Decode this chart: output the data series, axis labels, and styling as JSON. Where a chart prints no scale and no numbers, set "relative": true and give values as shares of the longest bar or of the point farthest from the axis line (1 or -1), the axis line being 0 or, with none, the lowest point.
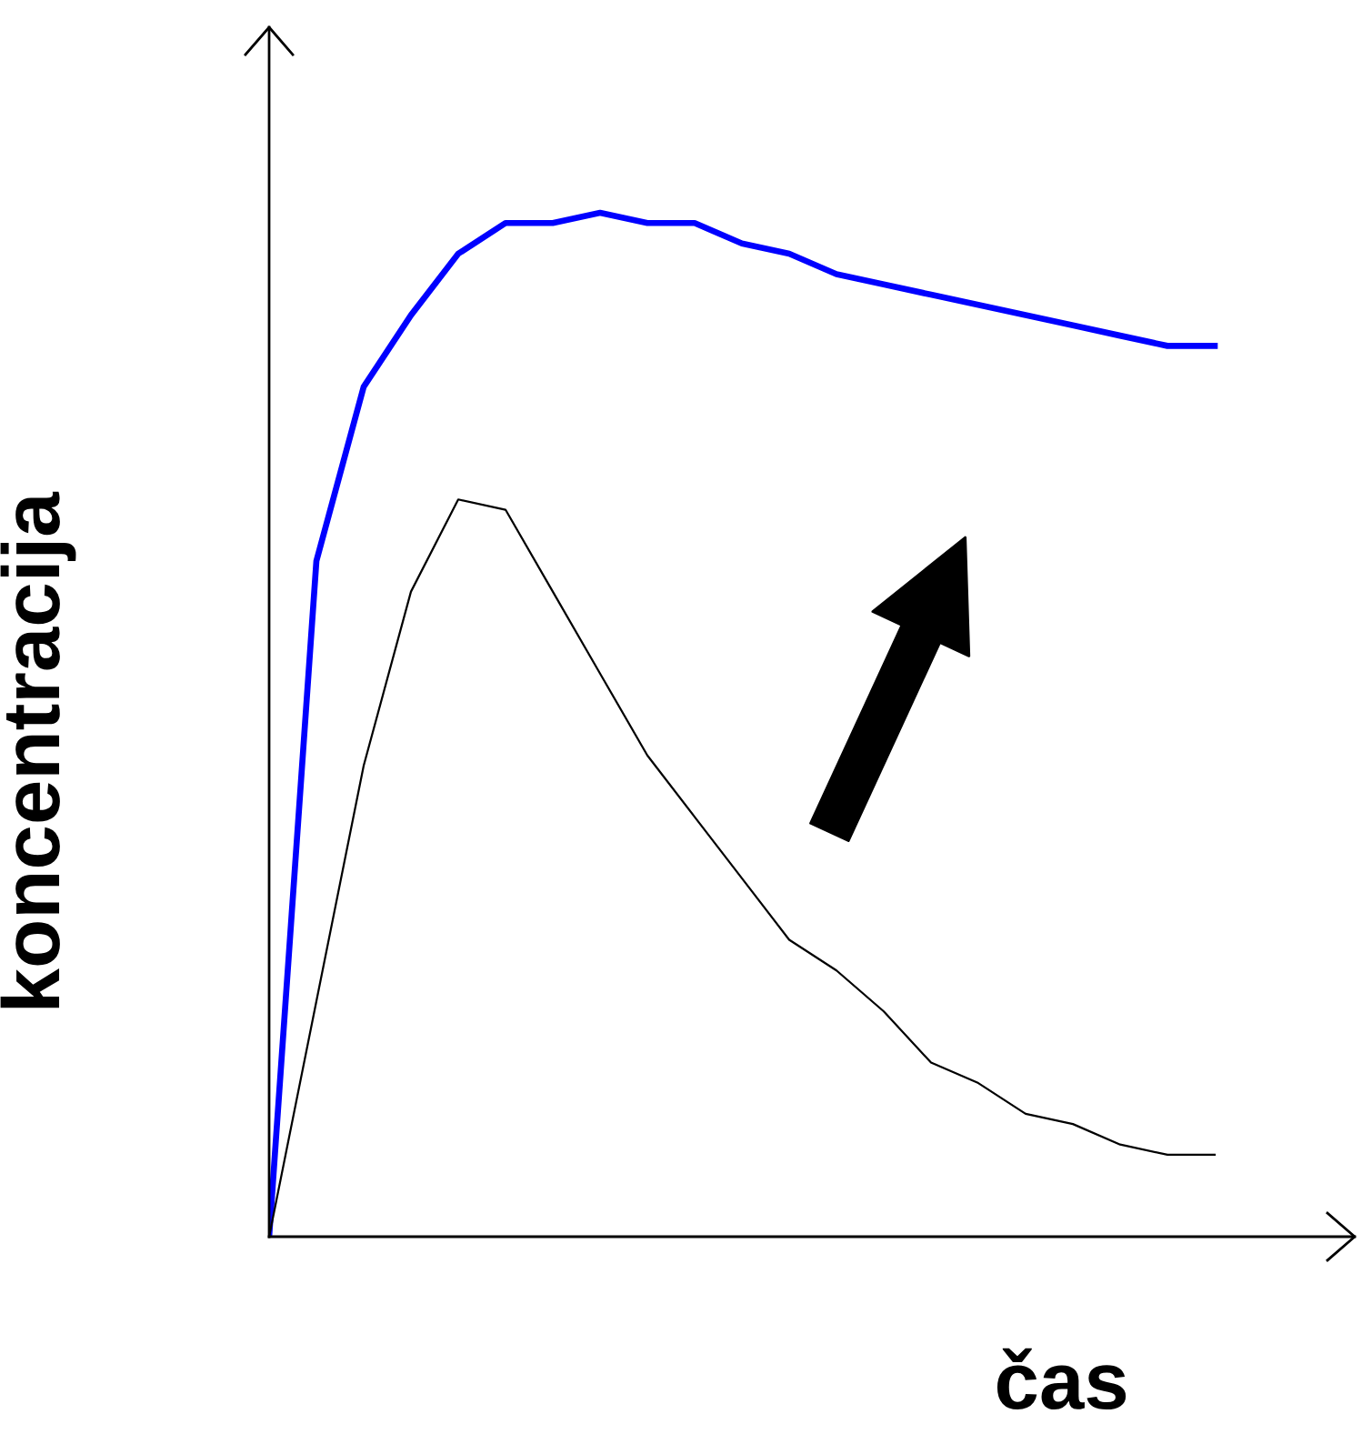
{
  "chart_data": {
    "type": "line",
    "relative": true,
    "xlabel": "čas",
    "ylabel": "koncentracija",
    "legend": false,
    "marker": "none",
    "line_style": "solid",
    "categories": [
      null,
      null,
      null,
      null,
      null,
      null,
      null,
      null,
      null,
      null,
      null,
      null,
      null,
      null,
      null,
      null,
      null,
      null,
      null,
      null,
      null
    ],
    "series": [
      {
        "color": "#0000ff",
        "values": [
          0,
          0.66,
          0.83,
          0.9,
          0.96,
          0.99,
          0.99,
          1.0,
          0.99,
          0.99,
          0.97,
          0.96,
          0.94,
          0.93,
          0.92,
          0.91,
          0.9,
          0.89,
          0.88,
          0.87,
          0.87
        ]
      },
      {
        "color": "#000000",
        "values": [
          0,
          0.23,
          0.46,
          0.63,
          0.72,
          0.71,
          0.63,
          0.55,
          0.47,
          0.41,
          0.35,
          0.29,
          0.26,
          0.22,
          0.17,
          0.15,
          0.12,
          0.11,
          0.09,
          0.08,
          0.08
        ]
      }
    ]
  }
}
